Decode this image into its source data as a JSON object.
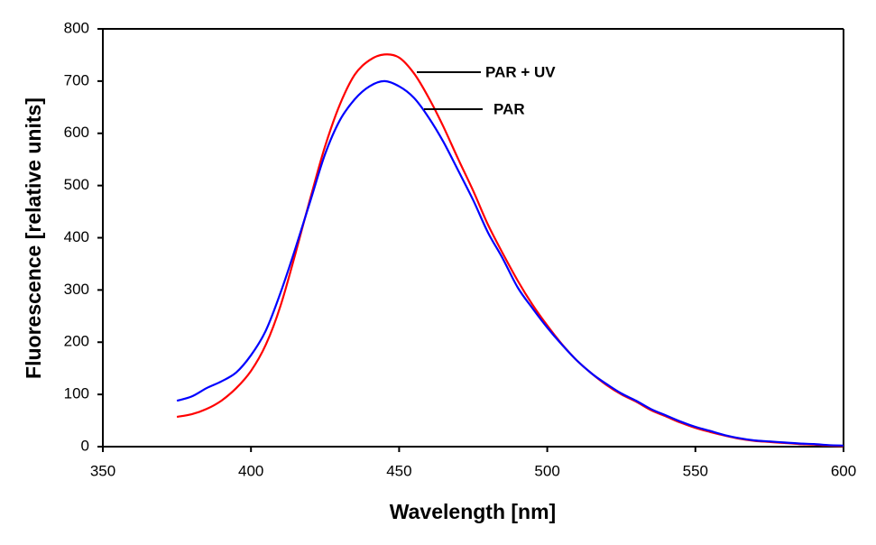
{
  "chart_data": {
    "type": "line",
    "title": "",
    "xlabel": "Wavelength [nm]",
    "ylabel": "Fluorescence [relative units]",
    "xlim": [
      350,
      600
    ],
    "ylim": [
      0,
      800
    ],
    "xticks": [
      350,
      400,
      450,
      500,
      550,
      600
    ],
    "yticks": [
      0,
      100,
      200,
      300,
      400,
      500,
      600,
      700,
      800
    ],
    "xtick_labels": [
      "350",
      "400",
      "450",
      "500",
      "550",
      "600"
    ],
    "ytick_labels": [
      "0",
      "100",
      "200",
      "300",
      "400",
      "500",
      "600",
      "700",
      "800"
    ],
    "grid": false,
    "legend": "none (inline annotations near peak, right side)",
    "x": [
      375,
      380,
      385,
      390,
      395,
      400,
      405,
      410,
      415,
      420,
      425,
      430,
      435,
      440,
      445,
      450,
      455,
      460,
      465,
      470,
      475,
      480,
      485,
      490,
      495,
      500,
      505,
      510,
      515,
      520,
      525,
      530,
      535,
      540,
      545,
      550,
      555,
      560,
      565,
      570,
      575,
      580,
      585,
      590,
      595,
      600
    ],
    "series": [
      {
        "name": "PAR + UV",
        "color": "#ff0000",
        "values": [
          57,
          62,
          72,
          88,
          112,
          145,
          195,
          270,
          370,
          475,
          575,
          655,
          712,
          740,
          751,
          745,
          715,
          668,
          612,
          550,
          490,
          425,
          370,
          318,
          272,
          232,
          196,
          165,
          140,
          118,
          100,
          86,
          70,
          58,
          46,
          36,
          28,
          21,
          15,
          11,
          9,
          7,
          5,
          4,
          2,
          1
        ]
      },
      {
        "name": "PAR",
        "color": "#0000ff",
        "values": [
          88,
          96,
          112,
          125,
          142,
          175,
          222,
          295,
          380,
          470,
          560,
          625,
          665,
          690,
          700,
          690,
          668,
          630,
          583,
          528,
          472,
          410,
          360,
          305,
          265,
          228,
          195,
          165,
          140,
          120,
          102,
          88,
          72,
          60,
          48,
          38,
          30,
          22,
          16,
          12,
          10,
          8,
          6,
          5,
          3,
          2
        ]
      }
    ],
    "annotations": [
      {
        "text": "PAR + UV",
        "points_to_series": "PAR + UV"
      },
      {
        "text": "PAR",
        "points_to_series": "PAR"
      }
    ]
  }
}
